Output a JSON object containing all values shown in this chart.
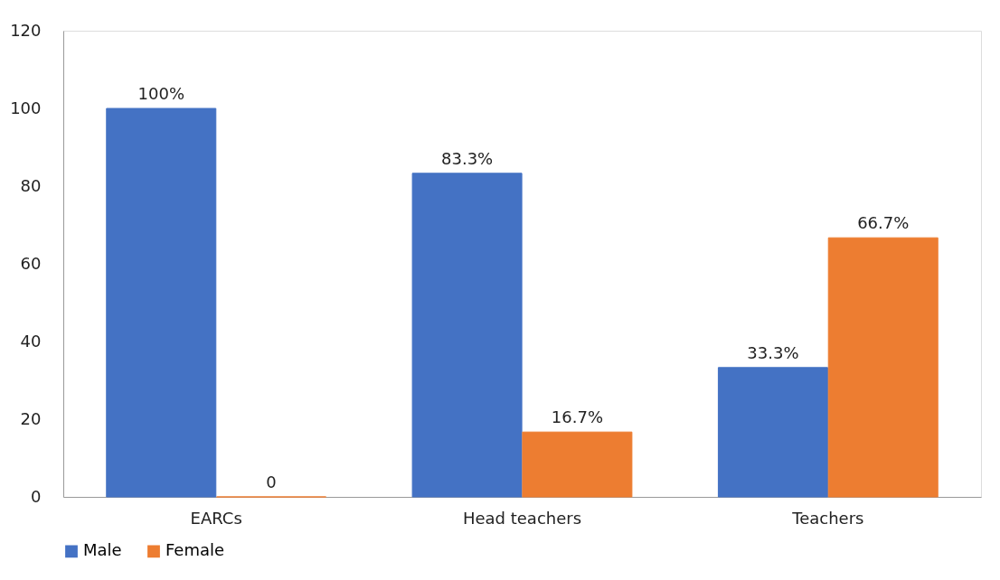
{
  "chart_data": {
    "type": "bar",
    "categories": [
      "EARCs",
      "Head teachers",
      "Teachers"
    ],
    "series": [
      {
        "name": "Male",
        "color": "#4472c4",
        "values": [
          100,
          83.3,
          33.3
        ],
        "value_labels": [
          "100%",
          "83.3%",
          "33.3%"
        ]
      },
      {
        "name": "Female",
        "color": "#ed7d31",
        "values": [
          0,
          16.7,
          66.7
        ],
        "value_labels": [
          "0",
          "16.7%",
          "66.7%"
        ]
      }
    ],
    "ylim": [
      0,
      120
    ],
    "yticks": [
      0,
      20,
      40,
      60,
      80,
      100,
      120
    ],
    "grid": false,
    "legend": "bottom"
  }
}
